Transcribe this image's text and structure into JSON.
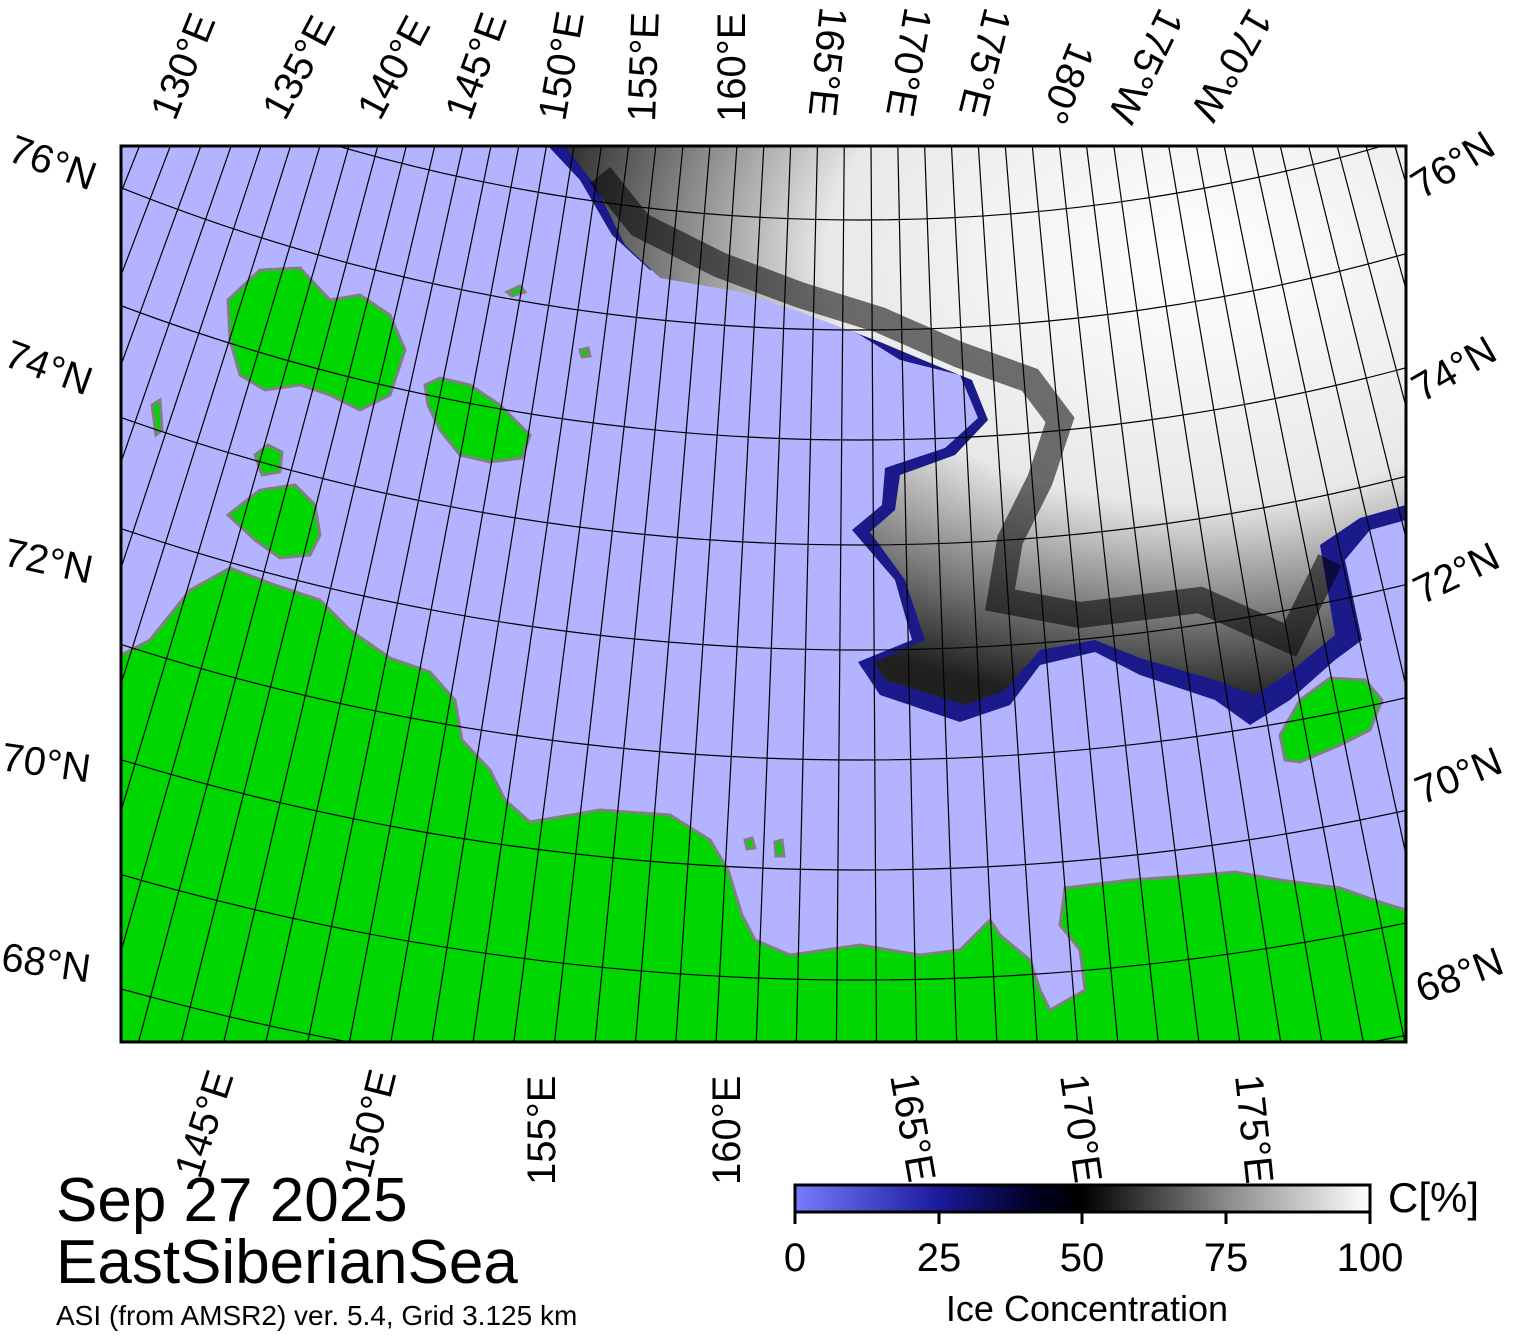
{
  "map": {
    "date": "Sep 27 2025",
    "region": "EastSiberianSea",
    "source": "ASI (from AMSR2) ver. 5.4,  Grid 3.125 km",
    "colors": {
      "ocean": "#b3b3ff",
      "land": "#00d700",
      "coast": "#808080",
      "ice_low": "#6f6fff",
      "ice_mid": "#000000",
      "ice_high": "#ffffff"
    },
    "top_lon_labels": [
      "130°E",
      "135°E",
      "140°E",
      "145°E",
      "150°E",
      "155°E",
      "160°E",
      "165°E",
      "170°E",
      "175°E",
      "180°",
      "175°W",
      "170°W"
    ],
    "bottom_lon_labels": [
      "145°E",
      "150°E",
      "155°E",
      "160°E",
      "165°E",
      "170°E",
      "175°E"
    ],
    "left_lat_labels": [
      "76°N",
      "74°N",
      "72°N",
      "70°N",
      "68°N"
    ],
    "right_lat_labels": [
      "76°N",
      "74°N",
      "72°N",
      "70°N",
      "68°N"
    ]
  },
  "colorbar": {
    "label": "Ice Concentration",
    "unit": "C[%]",
    "ticks": [
      "0",
      "25",
      "50",
      "75",
      "100"
    ],
    "range": [
      0,
      100
    ]
  }
}
